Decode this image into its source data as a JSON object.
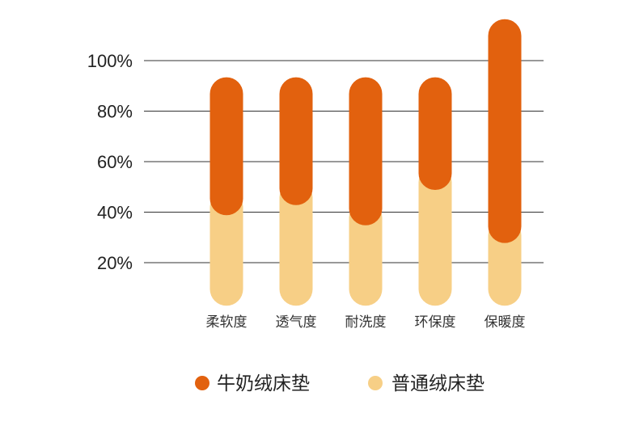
{
  "chart_data": {
    "type": "bar",
    "categories": [
      "柔软度",
      "透气度",
      "耐洗度",
      "环保度",
      "保暖度"
    ],
    "series": [
      {
        "name": "牛奶绒床垫",
        "values": [
          87,
          87,
          87,
          87,
          110
        ],
        "color": "#E2610E"
      },
      {
        "name": "普通绒床垫",
        "values": [
          42,
          46,
          38,
          52,
          31
        ],
        "color": "#F7CF86"
      }
    ],
    "y_tick_labels": [
      "20%",
      "40%",
      "60%",
      "80%",
      "100%"
    ],
    "y_ticks": [
      20,
      40,
      60,
      80,
      100
    ],
    "ylim": [
      10,
      110
    ],
    "grid": true,
    "legend_position": "bottom"
  }
}
